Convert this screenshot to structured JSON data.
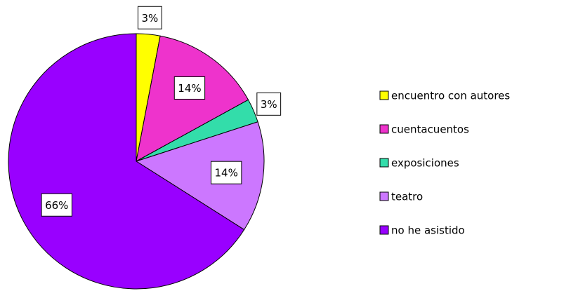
{
  "chart_data": {
    "type": "pie",
    "categories": [
      "encuentro con autores",
      "cuentacuentos",
      "exposiciones",
      "teatro",
      "no he asistido"
    ],
    "values": [
      3,
      14,
      3,
      14,
      66
    ],
    "value_labels": [
      "3%",
      "14%",
      "3%",
      "14%",
      "66%"
    ],
    "colors": [
      "#ffff00",
      "#ee33cc",
      "#33ddaa",
      "#cc77ff",
      "#9900ff"
    ],
    "legend": "right"
  }
}
